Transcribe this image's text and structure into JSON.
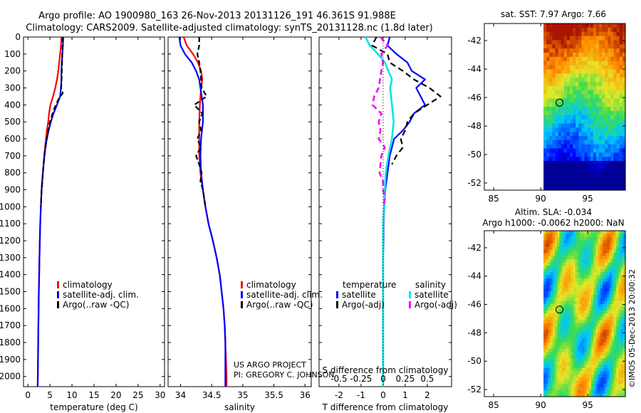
{
  "header": {
    "line1": "Argo profile: AO 1900980_163 26-Nov-2013 20131126_191 46.361S 91.988E",
    "line2": "Climatology: CARS2009. Satellite-adjusted climatology: synTS_20131128.nc (1.8d later)"
  },
  "colors": {
    "climatology": "#ff0000",
    "satellite": "#0000ff",
    "argo": "#000000",
    "salinity_satellite": "#00e5e5",
    "salinity_argo": "#ff00ff"
  },
  "credits": {
    "project": "US ARGO PROJECT",
    "pi": "PI: GREGORY C. JOHNSON",
    "imos": "©IMOS 05-Dec-2013 20:00:32"
  },
  "chart_data": [
    {
      "type": "line",
      "id": "temperature",
      "xlabel": "temperature (deg C)",
      "xlim": [
        -1,
        31
      ],
      "xticks": [
        0,
        5,
        10,
        15,
        20,
        25,
        30
      ],
      "ylim": [
        2060,
        0
      ],
      "yticks": [
        0,
        100,
        200,
        300,
        400,
        500,
        600,
        700,
        800,
        900,
        1000,
        1100,
        1200,
        1300,
        1400,
        1500,
        1600,
        1700,
        1800,
        1900,
        2000
      ],
      "legend": [
        "climatology",
        "satellite-adj. clim.",
        "Argo(..raw -QC)"
      ],
      "series": [
        {
          "name": "climatology",
          "depth": [
            0,
            50,
            100,
            150,
            200,
            250,
            300,
            350,
            400,
            450,
            500,
            550,
            600,
            650,
            700,
            800,
            900,
            1000,
            1100,
            1200,
            1300,
            1400,
            1500,
            1600,
            1700,
            1800,
            1900,
            2000,
            2060
          ],
          "values": [
            7.6,
            7.5,
            7.3,
            7.1,
            6.9,
            6.6,
            6.2,
            5.7,
            5.1,
            4.8,
            4.6,
            4.3,
            4.1,
            3.9,
            3.7,
            3.4,
            3.1,
            2.95,
            2.8,
            2.7,
            2.62,
            2.55,
            2.48,
            2.42,
            2.38,
            2.33,
            2.29,
            2.25,
            2.22
          ]
        },
        {
          "name": "satellite-adj. clim.",
          "depth": [
            0,
            50,
            100,
            150,
            200,
            250,
            300,
            350,
            400,
            450,
            500,
            550,
            600,
            650,
            700,
            800,
            900,
            1000,
            1100,
            1200,
            1300,
            1400,
            1500,
            1600,
            1700,
            1800,
            1900,
            2000,
            2060
          ],
          "values": [
            8.0,
            7.95,
            7.8,
            7.7,
            7.6,
            7.6,
            7.5,
            7.3,
            6.6,
            5.8,
            5.2,
            4.7,
            4.3,
            4.0,
            3.75,
            3.4,
            3.1,
            2.95,
            2.8,
            2.7,
            2.62,
            2.55,
            2.48,
            2.42,
            2.38,
            2.33,
            2.29,
            2.25,
            2.22
          ]
        },
        {
          "name": "Argo(..raw -QC)",
          "depth": [
            0,
            50,
            100,
            150,
            200,
            250,
            300,
            330,
            360,
            400,
            450,
            500,
            550,
            600,
            650,
            700,
            750,
            800,
            850,
            900,
            950,
            1000
          ],
          "values": [
            7.9,
            7.85,
            7.8,
            7.75,
            7.7,
            7.65,
            7.55,
            7.9,
            7.1,
            6.3,
            5.6,
            5.0,
            4.6,
            4.25,
            3.95,
            3.75,
            3.55,
            3.4,
            3.25,
            3.12,
            3.02,
            2.95
          ]
        }
      ]
    },
    {
      "type": "line",
      "id": "salinity",
      "xlabel": "salinity",
      "xlim": [
        33.8,
        36.1
      ],
      "xticks": [
        34,
        34.5,
        35,
        35.5,
        36
      ],
      "ylim": [
        2060,
        0
      ],
      "legend": [
        "climatology",
        "satellite-adj. clim.",
        "Argo(..raw -QC)"
      ],
      "series": [
        {
          "name": "climatology",
          "depth": [
            0,
            50,
            100,
            150,
            200,
            250,
            300,
            400,
            500,
            600,
            700,
            800,
            900,
            1000,
            1100,
            1200,
            1300,
            1400,
            1500,
            1600,
            1700,
            1800,
            1900,
            2000,
            2060
          ],
          "values": [
            34.05,
            34.1,
            34.2,
            34.28,
            34.33,
            34.35,
            34.33,
            34.31,
            34.3,
            34.3,
            34.3,
            34.32,
            34.36,
            34.4,
            34.45,
            34.52,
            34.58,
            34.63,
            34.66,
            34.69,
            34.71,
            34.72,
            34.73,
            34.74,
            34.74
          ]
        },
        {
          "name": "satellite-adj. clim.",
          "depth": [
            0,
            50,
            100,
            150,
            200,
            250,
            300,
            350,
            400,
            500,
            600,
            700,
            800,
            900,
            1000,
            1100,
            1200,
            1300,
            1400,
            1500,
            1600,
            1700,
            1800,
            1900,
            2000,
            2060
          ],
          "values": [
            33.98,
            34.0,
            34.07,
            34.18,
            34.25,
            34.3,
            34.32,
            34.34,
            34.36,
            34.36,
            34.33,
            34.32,
            34.33,
            34.36,
            34.4,
            34.45,
            34.52,
            34.58,
            34.63,
            34.66,
            34.69,
            34.71,
            34.72,
            34.72,
            34.72,
            34.72
          ]
        },
        {
          "name": "Argo(..raw -QC)",
          "depth": [
            0,
            50,
            100,
            150,
            200,
            300,
            350,
            400,
            450,
            500,
            550,
            600,
            650,
            700,
            750,
            800,
            850,
            900,
            950,
            1000
          ],
          "values": [
            34.3,
            34.3,
            34.27,
            34.3,
            34.32,
            34.34,
            34.42,
            34.22,
            34.35,
            34.3,
            34.33,
            34.27,
            34.33,
            34.25,
            34.3,
            34.34,
            34.32,
            34.36,
            34.38,
            34.4
          ]
        }
      ]
    },
    {
      "type": "line",
      "id": "difference",
      "xlabel": "T difference from climatology",
      "xlabel_top": "S difference from climatology",
      "xlim": [
        -2.9,
        3.1
      ],
      "xticks": [
        -2,
        -1,
        0,
        1,
        2
      ],
      "xticks_salinity": [
        "-0.5",
        "-0.25",
        "0",
        "0.25",
        "0.5"
      ],
      "ylim": [
        2060,
        0
      ],
      "legend_titles": [
        "temperature",
        "salinity"
      ],
      "legend": [
        "satellite",
        "Argo(-adj)",
        "satellite",
        "Argo(-adj)"
      ],
      "series": [
        {
          "name": "temperature satellite",
          "depth": [
            0,
            50,
            100,
            150,
            200,
            250,
            300,
            350,
            400,
            450,
            500,
            550,
            600,
            650,
            700,
            800,
            900,
            1000,
            1100,
            1200,
            1300,
            1400,
            1500,
            1600,
            1700,
            1800,
            1900,
            2000,
            2060
          ],
          "values": [
            0.3,
            0.2,
            0.6,
            1.1,
            1.3,
            1.9,
            1.5,
            1.7,
            1.9,
            1.4,
            1.2,
            0.9,
            0.5,
            0.4,
            0.3,
            0.2,
            0.1,
            0.05,
            0.02,
            0.02,
            0,
            0,
            0,
            0,
            0,
            0,
            0,
            0,
            0
          ]
        },
        {
          "name": "temperature Argo(-adj)",
          "depth": [
            0,
            50,
            100,
            150,
            200,
            250,
            300,
            350,
            400,
            450,
            500,
            550,
            600,
            650,
            700,
            750
          ],
          "values": [
            -0.3,
            -0.5,
            0.2,
            0.3,
            0.9,
            1.4,
            2.1,
            2.6,
            2.0,
            1.4,
            1.1,
            1.0,
            0.8,
            0.9,
            0.6,
            0.4
          ]
        },
        {
          "name": "salinity satellite",
          "depth": [
            0,
            50,
            100,
            150,
            200,
            250,
            300,
            400,
            500,
            600,
            700,
            800,
            900,
            1000,
            1100,
            1200,
            1300,
            1400,
            1500,
            1600,
            1700,
            1800,
            1900,
            2000,
            2060
          ],
          "values": [
            -0.2,
            -0.15,
            -0.06,
            0.02,
            0.06,
            0.1,
            0.08,
            0.1,
            0.12,
            0.1,
            0.06,
            0.03,
            0.02,
            0.01,
            0.0,
            0.0,
            0.0,
            0.0,
            0.0,
            0.0,
            0.0,
            0.0,
            0.0,
            0.0,
            0.0
          ]
        },
        {
          "name": "salinity Argo(-adj)",
          "depth": [
            0,
            50,
            100,
            150,
            200,
            300,
            350,
            400,
            450,
            500,
            550,
            600,
            650,
            700,
            750,
            800,
            850,
            900,
            950,
            1000
          ],
          "values": [
            -0.03,
            0.05,
            -0.02,
            0.0,
            -0.02,
            -0.05,
            -0.1,
            -0.12,
            -0.02,
            -0.05,
            -0.03,
            -0.05,
            0.02,
            -0.02,
            -0.03,
            -0.04,
            0.0,
            0.0,
            0.02,
            0.0
          ]
        }
      ]
    },
    {
      "type": "heatmap",
      "id": "sst-map",
      "title": "sat. SST: 7.97 Argo: 7.66",
      "xlim": [
        84,
        99
      ],
      "ylim": [
        -52.5,
        -40.8
      ],
      "xticks": [
        85,
        90,
        95
      ],
      "yticks": [
        -42,
        -44,
        -46,
        -48,
        -50,
        -52
      ],
      "data_x_range": [
        90.3,
        99
      ],
      "profile_location": [
        92.0,
        -46.36
      ]
    },
    {
      "type": "heatmap",
      "id": "sla-map",
      "title": "Altim. SLA: -0.034",
      "subtitle": "Argo h1000: -0.0062 h2000: NaN",
      "xlim": [
        84,
        99
      ],
      "ylim": [
        -52.5,
        -40.8
      ],
      "xticks": [
        85,
        90,
        95
      ],
      "yticks": [
        -42,
        -44,
        -46,
        -48,
        -50,
        -52
      ],
      "data_x_range": [
        90.3,
        99
      ],
      "profile_location": [
        92.0,
        -46.36
      ]
    }
  ]
}
